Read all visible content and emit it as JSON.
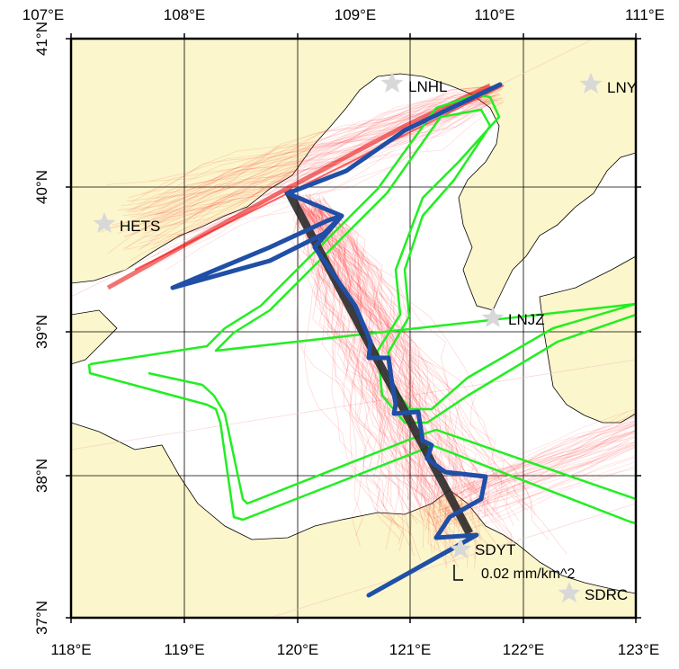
{
  "map": {
    "colors": {
      "land": "#fbf6cb",
      "sea": "#ffffff",
      "coast": "#000000",
      "grid": "#000000",
      "tracks": "#ff3030",
      "track_band": "#e60000",
      "cross_section": "#2b2b2b",
      "mean_track": "#1f4fa6",
      "contour": "#22ee22",
      "station_star": "#d8d8d8"
    },
    "top_labels": [
      "107°E",
      "108°E",
      "109°E",
      "110°E",
      "111°E"
    ],
    "bottom_labels": [
      "118°E",
      "119°E",
      "120°E",
      "121°E",
      "122°E",
      "123°E"
    ],
    "left_labels": [
      "41°N",
      "40°N",
      "39°N",
      "38°N",
      "37°N"
    ],
    "stations": [
      {
        "label": "LNHL"
      },
      {
        "label": "LNY"
      },
      {
        "label": "HETS"
      },
      {
        "label": "LNJZ"
      },
      {
        "label": "SDYT"
      },
      {
        "label": "SDRC"
      }
    ],
    "scale_label": "0.02 mm/km^2"
  }
}
